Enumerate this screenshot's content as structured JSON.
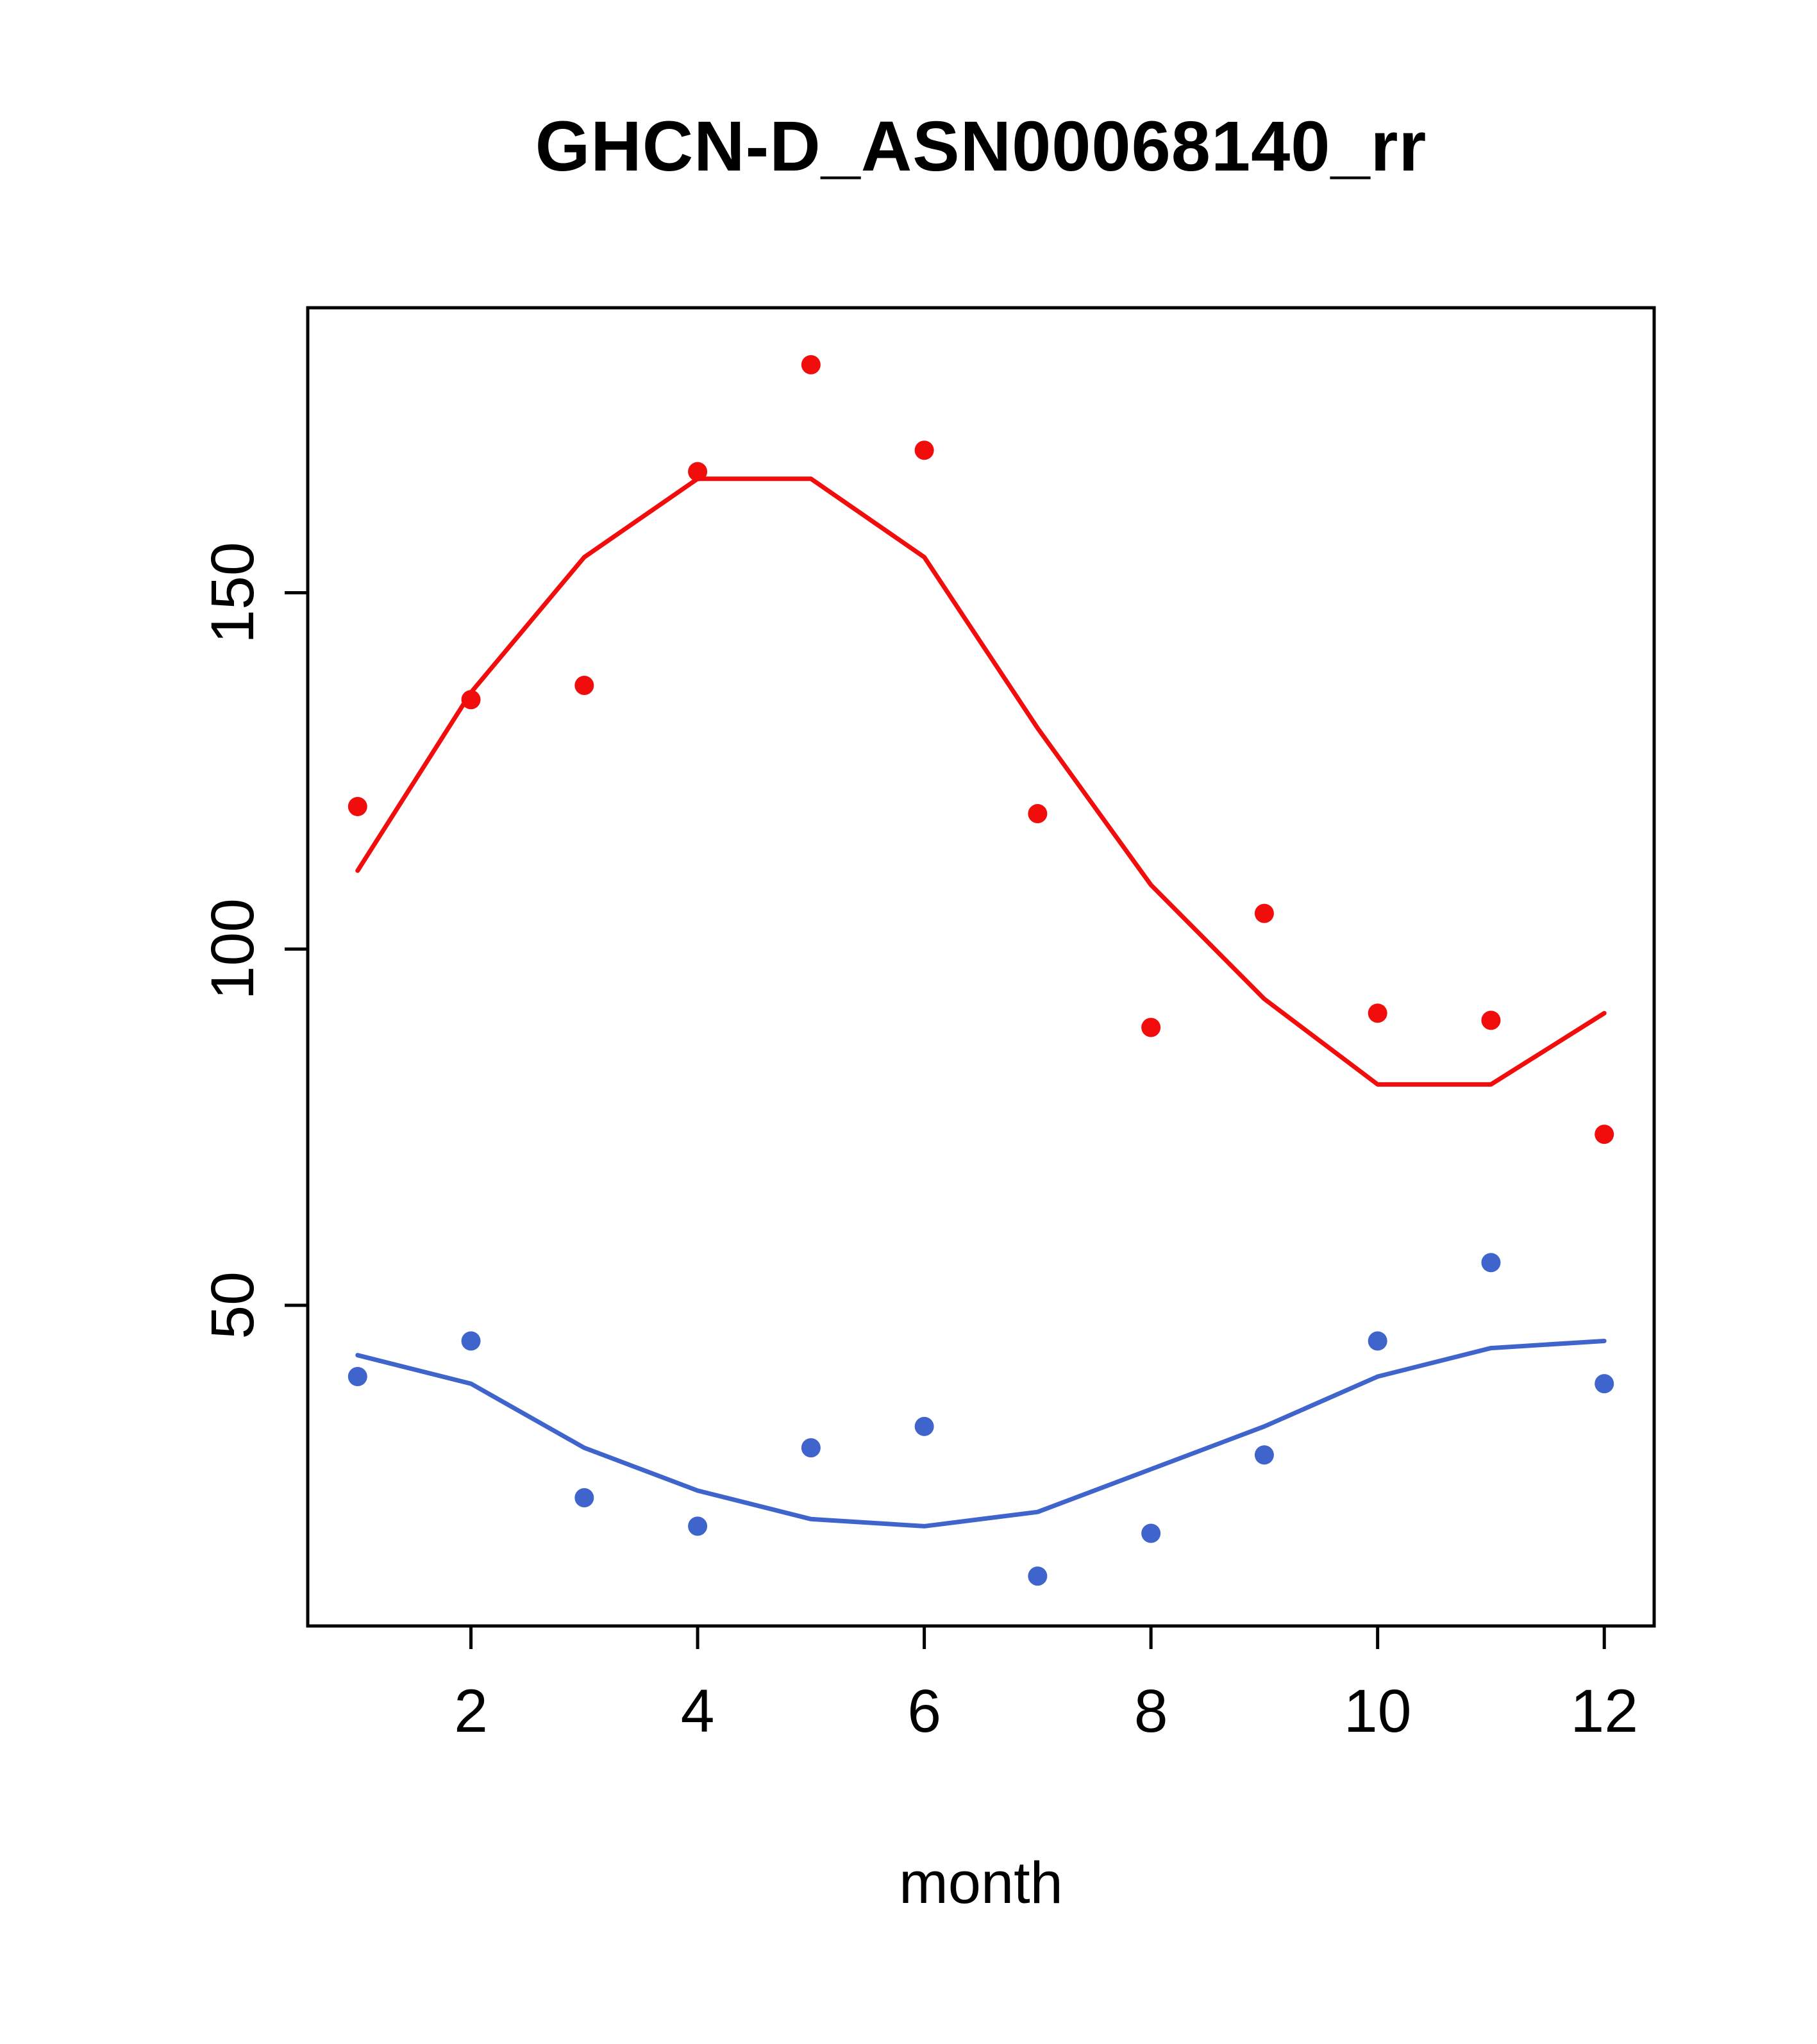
{
  "chart_data": {
    "type": "scatter",
    "title": "GHCN-D_ASN00068140_rr",
    "xlabel": "month",
    "ylabel": "",
    "grid": false,
    "legend": "none",
    "x": [
      1,
      2,
      3,
      4,
      5,
      6,
      7,
      8,
      9,
      10,
      11,
      12
    ],
    "xlim": [
      0.56,
      12.44
    ],
    "ylim": [
      5,
      190
    ],
    "x_ticks": [
      2,
      4,
      6,
      8,
      10,
      12
    ],
    "y_ticks": [
      50,
      100,
      150
    ],
    "colors": {
      "high_series": "#f20d0d",
      "low_series": "#3f64cc",
      "axis": "#000000"
    },
    "series": [
      {
        "name": "rr-high",
        "style": "points",
        "color": "#f20d0d",
        "values": [
          120,
          135,
          137,
          167,
          182,
          170,
          119,
          89,
          105,
          91,
          90,
          74
        ]
      },
      {
        "name": "rr-high-smooth",
        "style": "line",
        "color": "#f20d0d",
        "values": [
          111,
          136,
          155,
          166,
          166,
          155,
          131,
          109,
          93,
          81,
          81,
          91
        ]
      },
      {
        "name": "rr-low",
        "style": "points",
        "color": "#3f64cc",
        "values": [
          40,
          45,
          23,
          19,
          30,
          33,
          12,
          18,
          29,
          45,
          56,
          39
        ]
      },
      {
        "name": "rr-low-smooth",
        "style": "line",
        "color": "#3f64cc",
        "values": [
          43,
          39,
          30,
          24,
          20,
          19,
          21,
          27,
          33,
          40,
          44,
          45
        ]
      }
    ]
  }
}
